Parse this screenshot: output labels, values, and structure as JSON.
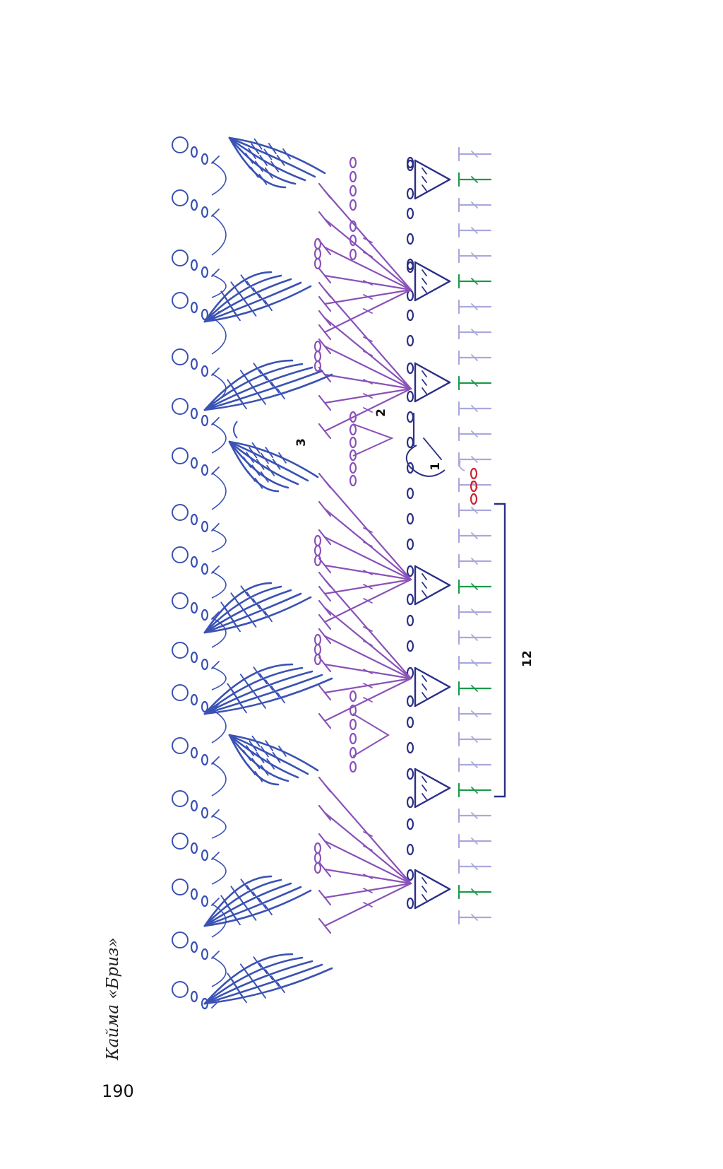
{
  "caption": "Кайма «Бриз»",
  "page_number": "190",
  "labels": {
    "row1": "1",
    "row2": "2",
    "row3": "3",
    "repeat": "12"
  },
  "colors": {
    "base_row": "#aaa8dc",
    "accent_row": "#1b9a4a",
    "row1": "#2b2f86",
    "row2": "#8a52b8",
    "row3": "#3a52b4",
    "start_chain": "#cc2233",
    "bracket": "#2b2f86",
    "text": "#111111"
  },
  "icons": {
    "shell": "fan-shell-icon",
    "picot": "picot-icon",
    "chain": "chain-stitch-icon"
  }
}
